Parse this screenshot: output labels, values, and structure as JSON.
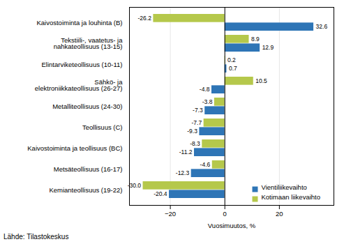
{
  "chart_data": {
    "type": "bar",
    "orientation": "horizontal",
    "categories": [
      "Kaivostoiminta ja louhinta (B)",
      "Tekstiili-, vaatetus- ja\nnahkateollisuus (13-15)",
      "Elintarviketeollisuus (10-11)",
      "Sähkö- ja\nelektroniikkateollisuus (26-27)",
      "Metalliteollisuus (24-30)",
      "Teollisuus (C)",
      "Kaivostoiminta ja teollisuus (BC)",
      "Metsäteollisuus (16-17)",
      "Kemianteollisuus (19-22)"
    ],
    "series": [
      {
        "name": "Vientiliikevaihto",
        "color": "#2E75B6",
        "values": [
          32.6,
          12.9,
          0.7,
          -4.8,
          -7.3,
          -9.3,
          -11.2,
          -12.3,
          -20.4
        ]
      },
      {
        "name": "Kotimaan liikevaihto",
        "color": "#B5C84B",
        "values": [
          -26.2,
          8.9,
          0.2,
          10.5,
          -3.8,
          -7.7,
          -8.3,
          -4.6,
          -30.0
        ],
        "value_labels": [
          "-26.2",
          "8.9",
          "0.2",
          "10.5",
          "-3.8",
          "-7.7",
          "-8.3",
          "-4.6",
          "-30.0"
        ]
      }
    ],
    "xlabel": "Vuosimuutos, %",
    "xlim": [
      -35,
      40
    ],
    "xticks": [
      -20,
      0,
      20
    ],
    "grid": true,
    "data_labels": true,
    "legend": "lower right",
    "source": "Lähde: Tilastokeskus"
  }
}
